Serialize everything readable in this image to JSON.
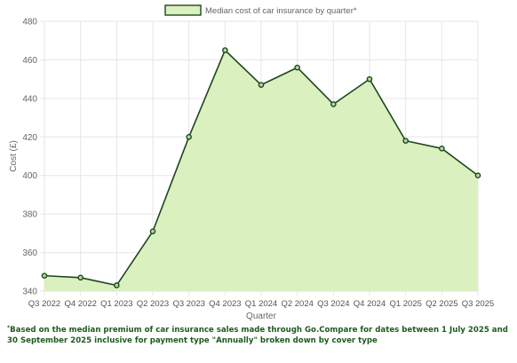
{
  "chart_data": {
    "type": "area",
    "title": "",
    "xlabel": "Quarter",
    "ylabel": "Cost (£)",
    "categories": [
      "Q3 2022",
      "Q4 2022",
      "Q1 2023",
      "Q2 2023",
      "Q3 2023",
      "Q4 2023",
      "Q1 2024",
      "Q2 2024",
      "Q3 2024",
      "Q4 2024",
      "Q1 2025",
      "Q2 2025",
      "Q3 2025"
    ],
    "series": [
      {
        "name": "Median cost of car insurance by quarter*",
        "values": [
          348,
          347,
          343,
          371,
          420,
          465,
          447,
          456,
          437,
          450,
          418,
          414,
          400
        ],
        "line_color": "#1e4620",
        "fill_color": "#daf0bf"
      }
    ],
    "ylim": [
      340,
      480
    ],
    "yticks": [
      340,
      360,
      380,
      400,
      420,
      440,
      460,
      480
    ],
    "grid": true,
    "legend_position": "top-center"
  },
  "footnote": {
    "marker": "*",
    "text": "Based on the median premium of car insurance sales made through Go.Compare for dates between 1 July 2025 and 30 September 2025 inclusive for payment type \"Annually\" broken down by cover type"
  }
}
